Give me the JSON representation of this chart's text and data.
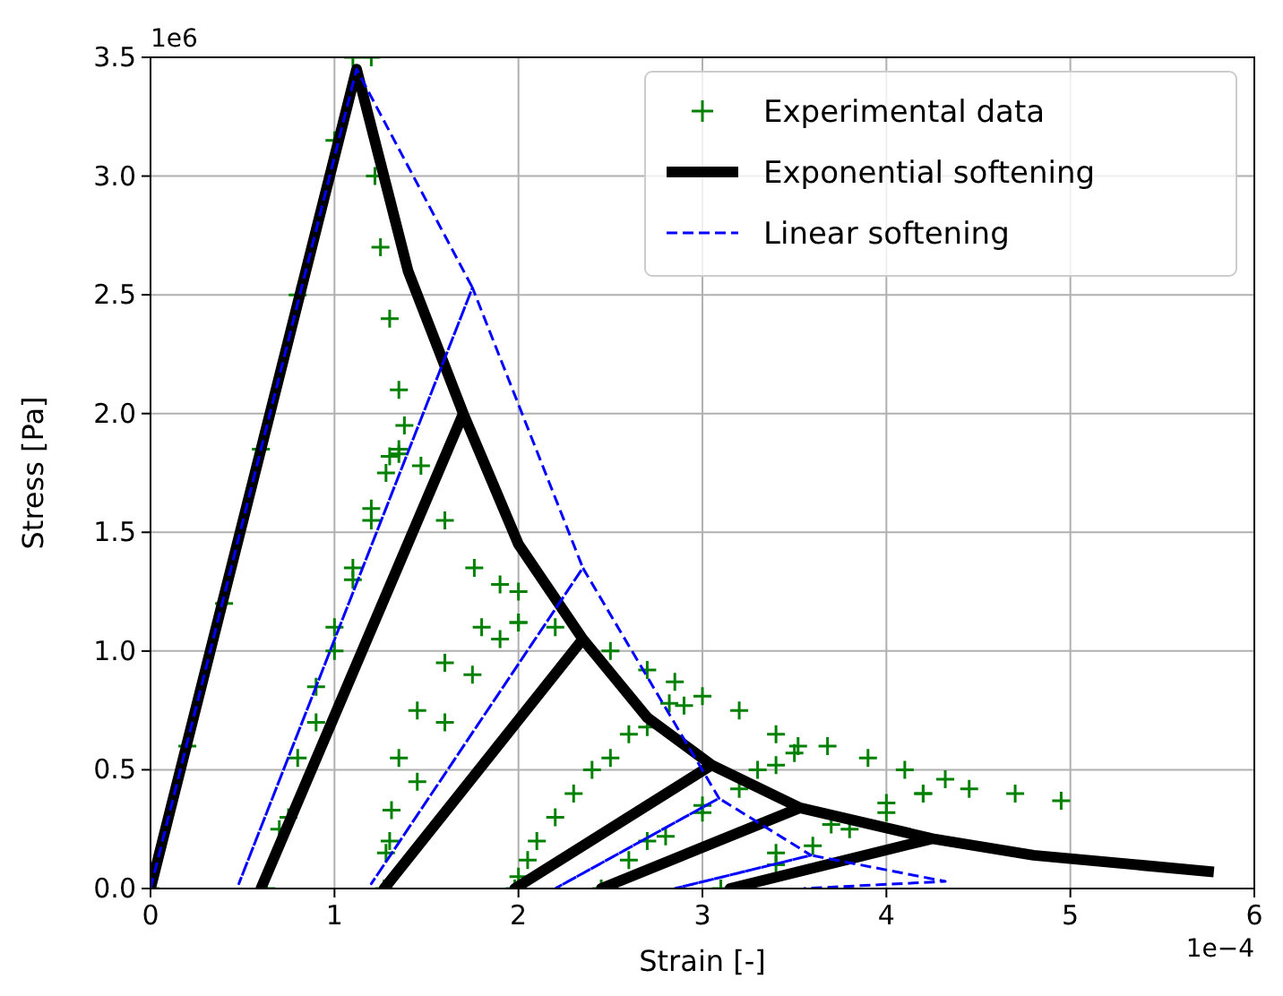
{
  "chart_data": {
    "type": "line",
    "xlabel": "Strain [-]",
    "ylabel": "Stress [Pa]",
    "xlim": [
      0,
      6
    ],
    "ylim": [
      0,
      3.5
    ],
    "xticks": [
      0,
      1,
      2,
      3,
      4,
      5,
      6
    ],
    "yticks": [
      {
        "value": 0,
        "label": "0.0"
      },
      {
        "value": 0.5,
        "label": "0.5"
      },
      {
        "value": 1,
        "label": "1.0"
      },
      {
        "value": 1.5,
        "label": "1.5"
      },
      {
        "value": 2,
        "label": "2.0"
      },
      {
        "value": 2.5,
        "label": "2.5"
      },
      {
        "value": 3,
        "label": "3.0"
      },
      {
        "value": 3.5,
        "label": "3.5"
      }
    ],
    "grid": true,
    "legend": "top right",
    "annotations": [
      "1e6",
      "1e−4"
    ],
    "series": [
      {
        "name": "Experimental data",
        "type": "scatter",
        "marker": "cross",
        "color": "#008000",
        "x": [
          0,
          0.2,
          0.4,
          0.6,
          0.8,
          1.0,
          1.1,
          1.2,
          1.22,
          1.25,
          1.3,
          1.35,
          1.38,
          1.35,
          1.3,
          1.2,
          1.1,
          1.0,
          0.9,
          0.8,
          0.7,
          0.63,
          0.75,
          0.9,
          1.0,
          1.1,
          1.2,
          1.28,
          1.35,
          1.47,
          1.6,
          1.76,
          1.9,
          2.0,
          2.0,
          1.8,
          1.6,
          1.45,
          1.35,
          1.31,
          1.28,
          1.27,
          1.3,
          1.45,
          1.6,
          1.75,
          1.9,
          2.0,
          2.2,
          2.5,
          2.7,
          2.85,
          2.82,
          2.6,
          2.4,
          2.2,
          2.05,
          2.0,
          1.98,
          2.1,
          2.3,
          2.5,
          2.7,
          2.9,
          3.0,
          3.2,
          3.4,
          3.52,
          3.4,
          3.2,
          3.0,
          2.8,
          2.6,
          2.45,
          2.7,
          3.0,
          3.3,
          3.5,
          3.68,
          3.9,
          4.1,
          4.32,
          4.2,
          4.0,
          3.8,
          3.6,
          3.4,
          3.1,
          3.4,
          3.7,
          4.0,
          4.2,
          4.45,
          4.7,
          4.95
        ],
        "values": [
          0,
          0.6,
          1.2,
          1.85,
          2.5,
          3.15,
          3.5,
          3.5,
          3.0,
          2.7,
          2.4,
          2.1,
          1.95,
          1.85,
          1.82,
          1.6,
          1.35,
          1.1,
          0.85,
          0.55,
          0.25,
          0,
          0.3,
          0.7,
          1.0,
          1.3,
          1.55,
          1.75,
          1.83,
          1.78,
          1.55,
          1.35,
          1.28,
          1.25,
          1.12,
          1.1,
          0.95,
          0.75,
          0.55,
          0.33,
          0.15,
          0,
          0.2,
          0.45,
          0.7,
          0.9,
          1.05,
          1.12,
          1.1,
          1.0,
          0.92,
          0.87,
          0.78,
          0.65,
          0.5,
          0.3,
          0.12,
          0.05,
          0,
          0.2,
          0.4,
          0.55,
          0.68,
          0.77,
          0.81,
          0.75,
          0.65,
          0.6,
          0.52,
          0.42,
          0.32,
          0.22,
          0.12,
          0,
          0.2,
          0.35,
          0.5,
          0.57,
          0.6,
          0.55,
          0.5,
          0.46,
          0.4,
          0.32,
          0.25,
          0.18,
          0.1,
          0,
          0.15,
          0.27,
          0.36,
          0.4,
          0.42,
          0.4,
          0.37
        ]
      },
      {
        "name": "Exponential softening",
        "line_style": "solid",
        "color": "#000000",
        "x": [
          0,
          1.12,
          1.4,
          1.7,
          0.6,
          1.7,
          2.0,
          2.35,
          1.27,
          2.35,
          2.7,
          3.05,
          1.98,
          3.05,
          3.53,
          2.45,
          3.53,
          4.25,
          3.15,
          4.25,
          4.8,
          5.78
        ],
        "values": [
          0,
          3.45,
          2.6,
          2.0,
          0,
          2.0,
          1.45,
          1.05,
          0,
          1.05,
          0.72,
          0.52,
          0,
          0.52,
          0.34,
          0,
          0.34,
          0.21,
          0,
          0.21,
          0.14,
          0.07
        ]
      },
      {
        "name": "Linear softening",
        "line_style": "dashed",
        "color": "#0000ff",
        "x": [
          0,
          1.12,
          1.75,
          0.48,
          1.75,
          2.35,
          1.2,
          2.35,
          3.09,
          2.2,
          3.09,
          3.59,
          2.85,
          3.59,
          4.32,
          3.55
        ],
        "values": [
          0,
          3.45,
          2.53,
          0.02,
          2.53,
          1.35,
          0.02,
          1.35,
          0.38,
          0,
          0.38,
          0.14,
          0,
          0.14,
          0.03,
          0
        ]
      }
    ]
  }
}
